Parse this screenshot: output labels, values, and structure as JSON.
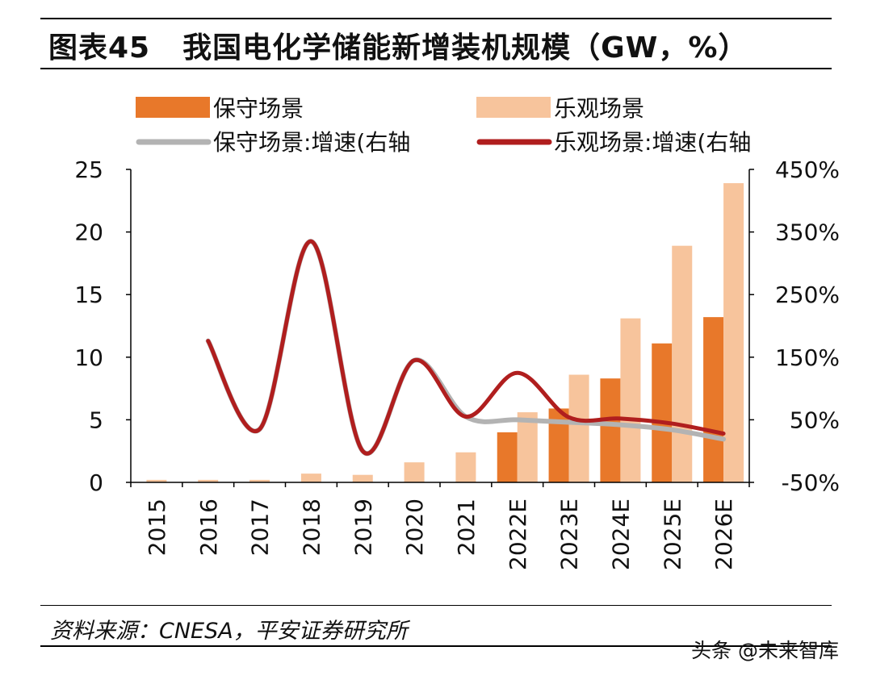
{
  "header": {
    "figure_label": "图表45",
    "title": "我国电化学储能新增装机规模（GW，%）"
  },
  "footer": {
    "source": "资料来源：CNESA，平安证券研究所",
    "watermark": "头条 @未来智库"
  },
  "colors": {
    "conservative_bar": "#e8782a",
    "optimistic_bar": "#f7c49c",
    "conservative_line": "#b3b3b3",
    "optimistic_line": "#b01e1e"
  },
  "chart_data": {
    "type": "bar",
    "title": "我国电化学储能新增装机规模（GW，%）",
    "categories": [
      "2015",
      "2016",
      "2017",
      "2018",
      "2019",
      "2020",
      "2021",
      "2022E",
      "2023E",
      "2024E",
      "2025E",
      "2026E"
    ],
    "series": [
      {
        "name": "保守场景",
        "type": "bar",
        "axis": "left",
        "values": [
          null,
          null,
          null,
          null,
          null,
          null,
          null,
          4.0,
          5.9,
          8.3,
          11.1,
          13.2
        ]
      },
      {
        "name": "乐观场景",
        "type": "bar",
        "axis": "left",
        "values": [
          0.2,
          0.2,
          0.2,
          0.7,
          0.6,
          1.6,
          2.4,
          5.6,
          8.6,
          13.1,
          18.9,
          23.9
        ]
      },
      {
        "name": "保守场景:增速(右轴",
        "type": "line",
        "axis": "right",
        "values": [
          null,
          176,
          35,
          335,
          0,
          145,
          55,
          50,
          46,
          42,
          34,
          19
        ]
      },
      {
        "name": "乐观场景:增速(右轴",
        "type": "line",
        "axis": "right",
        "values": [
          null,
          176,
          35,
          335,
          0,
          145,
          55,
          125,
          54,
          52,
          44,
          28
        ]
      }
    ],
    "left_axis": {
      "ylim": [
        0,
        25
      ],
      "ticks": [
        "0",
        "5",
        "10",
        "15",
        "20",
        "25"
      ]
    },
    "right_axis": {
      "ylim": [
        -50,
        450
      ],
      "ticks": [
        "-50%",
        "50%",
        "150%",
        "250%",
        "350%",
        "450%"
      ]
    },
    "legend": [
      {
        "label": "保守场景",
        "kind": "bar",
        "series": 0
      },
      {
        "label": "乐观场景",
        "kind": "bar",
        "series": 1
      },
      {
        "label": "保守场景:增速(右轴",
        "kind": "line",
        "series": 2
      },
      {
        "label": "乐观场景:增速(右轴",
        "kind": "line",
        "series": 3
      }
    ],
    "legend_position": "top",
    "grid": false
  }
}
